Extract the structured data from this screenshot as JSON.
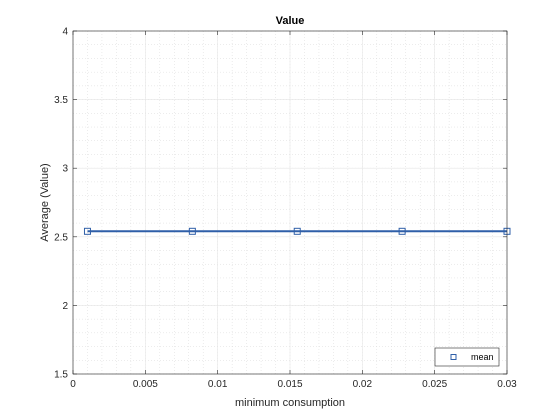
{
  "chart_data": {
    "type": "line",
    "title": "Value",
    "xlabel": "minimum consumption",
    "ylabel": "Average (Value)",
    "xlim": [
      0,
      0.03
    ],
    "ylim": [
      1.5,
      4
    ],
    "xticks": [
      0,
      0.005,
      0.01,
      0.015,
      0.02,
      0.025,
      0.03
    ],
    "xtick_labels": [
      "0",
      "0.005",
      "0.01",
      "0.015",
      "0.02",
      "0.025",
      "0.03"
    ],
    "yticks": [
      1.5,
      2,
      2.5,
      3,
      3.5,
      4
    ],
    "ytick_labels": [
      "1.5",
      "2",
      "2.5",
      "3",
      "3.5",
      "4"
    ],
    "grid": true,
    "minor_grid": true,
    "legend_position": "bottom-right",
    "series": [
      {
        "name": "mean",
        "color": "#2f5fa8",
        "marker": "square",
        "x": [
          0.001,
          0.00825,
          0.0155,
          0.02275,
          0.03
        ],
        "y": [
          2.54,
          2.54,
          2.54,
          2.54,
          2.54
        ]
      }
    ]
  }
}
